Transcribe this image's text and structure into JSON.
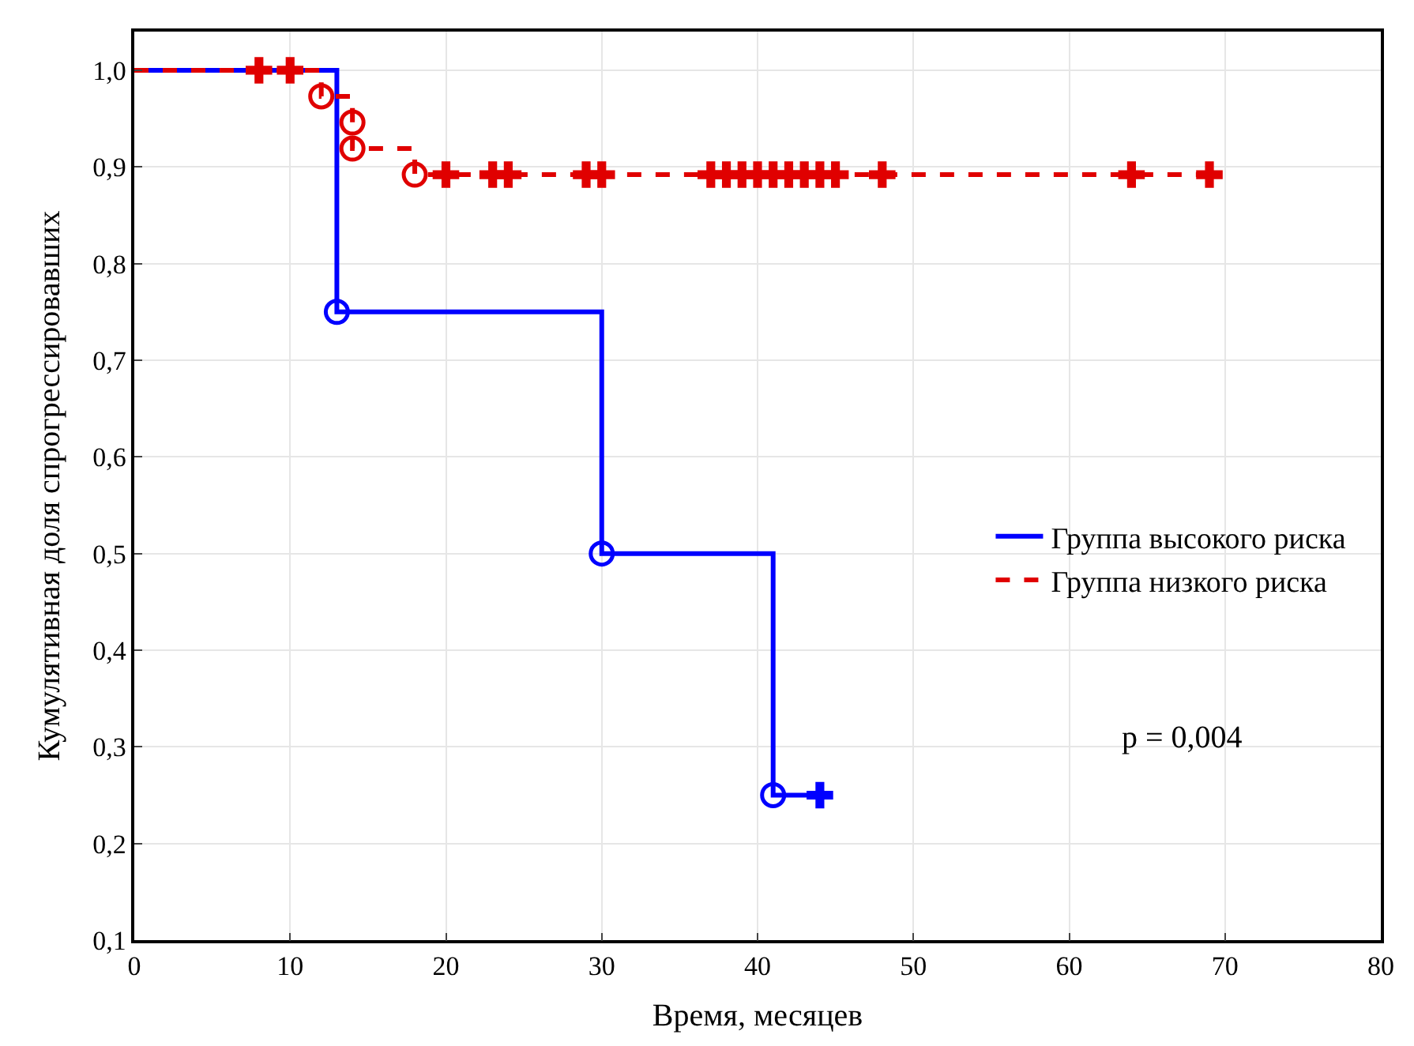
{
  "chart_data": {
    "type": "step",
    "xlabel": "Время, месяцев",
    "ylabel": "Кумулятивная доля спрогрессировавших",
    "xlim": [
      0,
      80
    ],
    "xticks": [
      0,
      10,
      20,
      30,
      40,
      50,
      60,
      70,
      80
    ],
    "ylim": [
      0.1,
      1.04
    ],
    "yticks": [
      {
        "value": 0.1,
        "label": "0,1"
      },
      {
        "value": 0.2,
        "label": "0,2"
      },
      {
        "value": 0.3,
        "label": "0,3"
      },
      {
        "value": 0.4,
        "label": "0,4"
      },
      {
        "value": 0.5,
        "label": "0,5"
      },
      {
        "value": 0.6,
        "label": "0,6"
      },
      {
        "value": 0.7,
        "label": "0,7"
      },
      {
        "value": 0.8,
        "label": "0,8"
      },
      {
        "value": 0.9,
        "label": "0,9"
      },
      {
        "value": 1.0,
        "label": "1,0"
      }
    ],
    "grid": true,
    "legend": "right",
    "annotations": [
      "p = 0,004"
    ],
    "series": [
      {
        "name": "Группа высокого риска",
        "color": "#0000ff",
        "line_style": "solid",
        "marker": "none",
        "x": [
          0,
          13,
          30,
          41,
          44
        ],
        "values": [
          1.0,
          0.75,
          0.5,
          0.25,
          0.25
        ]
      },
      {
        "name": "Группа низкого риска",
        "color": "#e00000",
        "line_style": "dashed",
        "marker": "none",
        "x": [
          0,
          12,
          14,
          14,
          18,
          69
        ],
        "values": [
          1.0,
          0.973,
          0.946,
          0.919,
          0.892,
          0.892
        ]
      },
      {
        "type": "scatter",
        "color": "#0000ff",
        "marker": "circle",
        "x": [
          13,
          30,
          41
        ],
        "values": [
          0.75,
          0.5,
          0.25
        ]
      },
      {
        "type": "scatter",
        "color": "#0000ff",
        "marker": "cross",
        "x": [
          44
        ],
        "values": [
          0.25
        ]
      },
      {
        "type": "scatter",
        "color": "#e00000",
        "marker": "circle",
        "x": [
          12,
          14,
          14,
          18
        ],
        "values": [
          0.973,
          0.946,
          0.919,
          0.892
        ]
      },
      {
        "type": "scatter",
        "color": "#e00000",
        "marker": "cross",
        "x": [
          8,
          10,
          20,
          23,
          24,
          29,
          30,
          37,
          38,
          39,
          40,
          41,
          42,
          43,
          44,
          45,
          48,
          64,
          69
        ],
        "values": [
          1.0,
          1.0,
          0.892,
          0.892,
          0.892,
          0.892,
          0.892,
          0.892,
          0.892,
          0.892,
          0.892,
          0.892,
          0.892,
          0.892,
          0.892,
          0.892,
          0.892,
          0.892,
          0.892
        ]
      }
    ]
  }
}
